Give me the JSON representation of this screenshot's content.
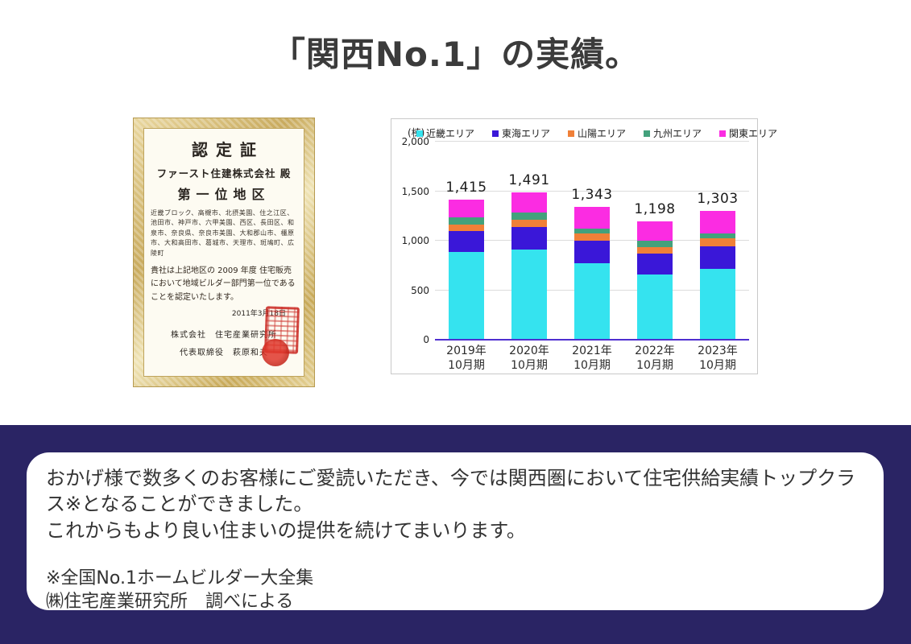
{
  "page": {
    "title": "「関西No.1」の実績。"
  },
  "certificate": {
    "title": "認定証",
    "recipient": "ファースト住建株式会社 殿",
    "rank": "第一位地区",
    "areas": "近畿ブロック、高槻市、北摂美園、住之江区、池田市、神戸市、六甲美園、西区、長田区、和泉市、奈良県、奈良市美園、大和郡山市、橿原市、大和高田市、葛城市、天理市、斑鳩町、広陵町",
    "body": "貴社は上記地区の 2009 年度 住宅販売において地域ビルダー部門第一位であることを認定いたします。",
    "date": "2011年3月18日",
    "issuer": "株式会社　住宅産業研究所",
    "signer": "代表取締役　萩原和夫"
  },
  "chart_data": {
    "type": "bar",
    "stacked": true,
    "unit_label": "(棟)",
    "categories": [
      "2019年10月期",
      "2020年10月期",
      "2021年10月期",
      "2022年10月期",
      "2023年10月期"
    ],
    "category_lines": [
      [
        "2019年",
        "10月期"
      ],
      [
        "2020年",
        "10月期"
      ],
      [
        "2021年",
        "10月期"
      ],
      [
        "2022年",
        "10月期"
      ],
      [
        "2023年",
        "10月期"
      ]
    ],
    "series": [
      {
        "name": "近畿エリア",
        "color": "#35e3ef",
        "values": [
          885,
          910,
          775,
          655,
          715
        ]
      },
      {
        "name": "東海エリア",
        "color": "#3a17d8",
        "values": [
          215,
          225,
          225,
          213,
          228
        ]
      },
      {
        "name": "山陽エリア",
        "color": "#f08038",
        "values": [
          60,
          80,
          70,
          67,
          84
        ]
      },
      {
        "name": "九州エリア",
        "color": "#43a17c",
        "values": [
          75,
          68,
          50,
          68,
          49
        ]
      },
      {
        "name": "関東エリア",
        "color": "#fb2ce2",
        "values": [
          180,
          208,
          223,
          195,
          227
        ]
      }
    ],
    "totals": [
      1415,
      1491,
      1343,
      1198,
      1303
    ],
    "total_labels": [
      "1,415",
      "1,491",
      "1,343",
      "1,198",
      "1,303"
    ],
    "ylim": [
      0,
      2000
    ],
    "yticks": [
      0,
      500,
      1000,
      1500,
      2000
    ],
    "ytick_labels": [
      "0",
      "500",
      "1,000",
      "1,500",
      "2,000"
    ],
    "grid": true,
    "legend_position": "top",
    "axis_line_color": "#4f2fd0"
  },
  "footer": {
    "para1": "おかげ様で数多くのお客様にご愛読いただき、今では関西圏において住宅供給実績トップクラス※となることができました。",
    "para2": "これからもより良い住まいの提供を続けてまいります。",
    "note1": "※全国No.1ホームビルダー大全集",
    "note2": "㈱住宅産業研究所　調べによる"
  },
  "colors": {
    "band_navy": "#2a2464",
    "title_gray": "#3b3b3b",
    "cert_gold": "#c9ab5e",
    "seal_red": "#c32318"
  }
}
